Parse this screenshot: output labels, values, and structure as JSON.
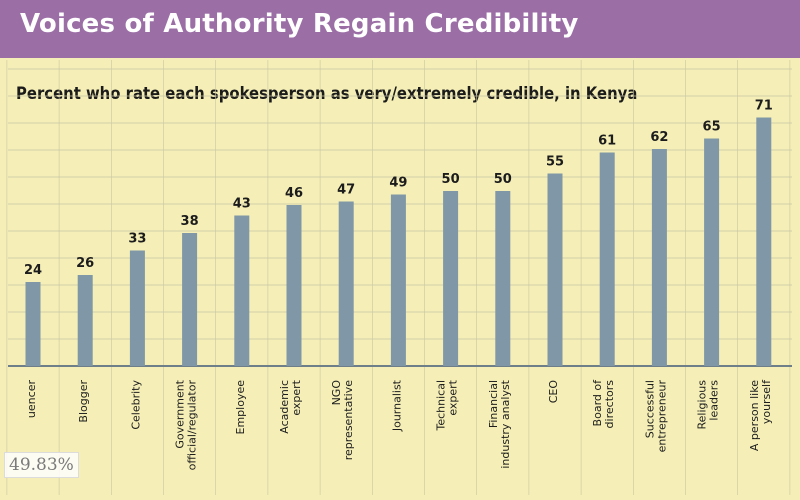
{
  "header": {
    "title": "Voices of Authority Regain Credibility"
  },
  "overlay": {
    "badge": "49.83%"
  },
  "colors": {
    "bar": "#7f97a6",
    "background": "#f5efb7",
    "title_band": "#9b6fa6",
    "grid": "#c9c5a4"
  },
  "chart_data": {
    "type": "bar",
    "title": "Voices of Authority Regain Credibility",
    "subtitle": "Percent who rate each spokesperson as very/extremely credible, in Kenya",
    "categories": [
      "uencer",
      "Blogger",
      "Celebrity",
      "Government official/regulator",
      "Employee",
      "Academic expert",
      "NGO representative",
      "Journalist",
      "Technical expert",
      "Financial industry analyst",
      "CEO",
      "Board of directors",
      "Successful entrepreneur",
      "Religious leaders",
      "A person like yourself"
    ],
    "values": [
      24,
      26,
      33,
      38,
      43,
      46,
      47,
      49,
      50,
      50,
      55,
      61,
      62,
      65,
      71
    ],
    "ylim": [
      0,
      80
    ],
    "xlabel": "",
    "ylabel": "",
    "grid": true,
    "data_labels": true
  }
}
